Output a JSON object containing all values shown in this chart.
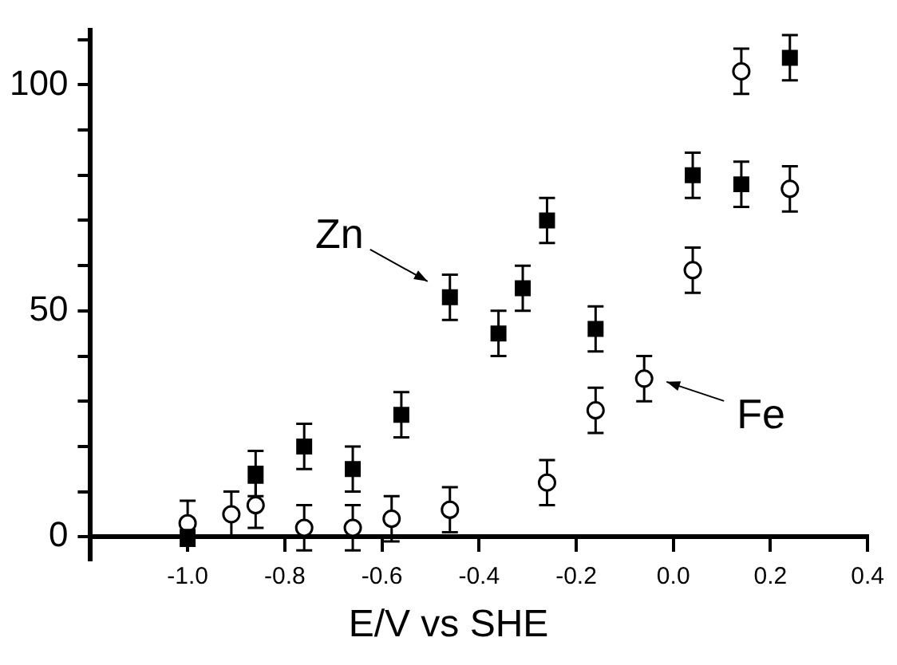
{
  "chart_data": {
    "type": "scatter",
    "xlabel": "E/V vs SHE",
    "xlim": [
      -1.2,
      0.4
    ],
    "ylim": [
      -5,
      112
    ],
    "xticks": [
      {
        "value": -1,
        "label": "-1.0"
      },
      -0.8,
      -0.6,
      -0.4,
      -0.2,
      {
        "value": 0,
        "label": "0.0"
      },
      0.2,
      0.4
    ],
    "yticks": [
      0,
      {
        "value": 10,
        "label": null
      },
      {
        "value": 20,
        "label": null
      },
      {
        "value": 30,
        "label": null
      },
      {
        "value": 40,
        "label": null
      },
      50,
      {
        "value": 60,
        "label": null
      },
      {
        "value": 70,
        "label": null
      },
      {
        "value": 80,
        "label": null
      },
      {
        "value": 90,
        "label": null
      },
      100,
      {
        "value": 110,
        "label": null
      }
    ],
    "grid": false,
    "legend": false,
    "series": [
      {
        "color": "#000000",
        "marker": "square",
        "x": [
          -1.0,
          -0.86,
          -0.76,
          -0.66,
          -0.56,
          -0.46,
          -0.36,
          -0.31,
          -0.26,
          -0.16,
          0.04,
          0.14,
          0.24
        ],
        "values": [
          0,
          14,
          20,
          15,
          27,
          53,
          45,
          55,
          70,
          46,
          80,
          78,
          106
        ],
        "errors": [
          null,
          5,
          5,
          5,
          5,
          5,
          5,
          5,
          5,
          5,
          5,
          5,
          5
        ]
      },
      {
        "color": "#000000",
        "marker": "circle",
        "x": [
          -1.0,
          -0.91,
          -0.86,
          -0.76,
          -0.66,
          -0.58,
          -0.46,
          -0.26,
          -0.16,
          -0.06,
          0.04,
          0.14,
          0.24
        ],
        "values": [
          3,
          5,
          7,
          2,
          2,
          4,
          6,
          12,
          28,
          35,
          59,
          103,
          77
        ],
        "errors": [
          5,
          5,
          5,
          5,
          5,
          5,
          5,
          5,
          5,
          5,
          5,
          5,
          5
        ]
      }
    ],
    "annotations": [
      {
        "text": "Zn",
        "x": -0.46,
        "y": 53
      },
      {
        "text": "Fe",
        "x": -0.06,
        "y": 35
      }
    ]
  }
}
